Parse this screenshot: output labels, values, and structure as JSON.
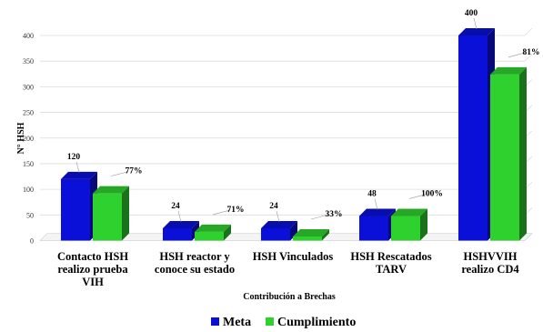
{
  "chart_data": {
    "type": "bar",
    "xlabel": "Contribución a Brechas",
    "ylabel": "N° HSH",
    "ylim": [
      0,
      400
    ],
    "yticks": [
      0,
      50,
      100,
      150,
      200,
      250,
      300,
      350,
      400
    ],
    "grid": true,
    "legend_position": "bottom",
    "categories": [
      [
        "Contacto HSH",
        "realizo prueba",
        "VIH"
      ],
      [
        "HSH reactor y",
        "conoce su estado"
      ],
      [
        "HSH Vinculados"
      ],
      [
        "HSH Rescatados",
        "TARV"
      ],
      [
        "HSHVVIH",
        "realizo CD4"
      ]
    ],
    "series": [
      {
        "name": "Meta",
        "color": "#0a10d8",
        "values": [
          120,
          24,
          24,
          48,
          400
        ],
        "labels": [
          "120",
          "24",
          "24",
          "48",
          "400"
        ]
      },
      {
        "name": "Cumplimiento",
        "color": "#2fd12f",
        "values": [
          92,
          17,
          8,
          48,
          324
        ],
        "labels": [
          "77%",
          "71%",
          "33%",
          "100%",
          "81%"
        ]
      }
    ]
  }
}
